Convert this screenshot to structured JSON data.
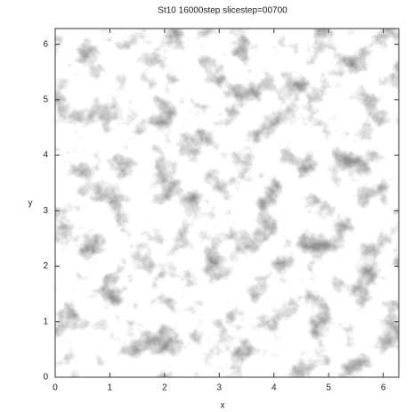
{
  "chart_data": {
    "type": "image",
    "title": "St10 16000step slicestep=00700",
    "xlabel": "x",
    "ylabel": "y",
    "xlim": [
      0,
      6.283
    ],
    "ylim": [
      0,
      6.283
    ],
    "xticks": [
      0,
      1,
      2,
      3,
      4,
      5,
      6
    ],
    "yticks": [
      0,
      1,
      2,
      3,
      4,
      5,
      6
    ]
  }
}
